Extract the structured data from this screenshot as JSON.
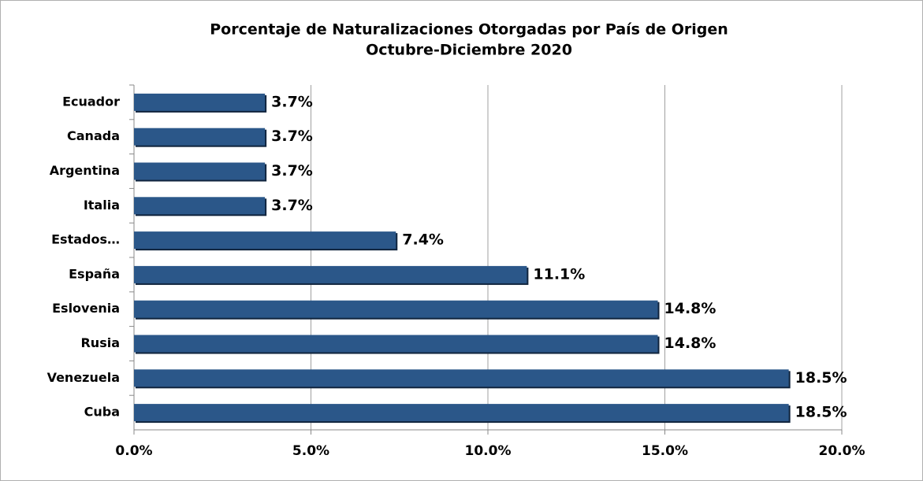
{
  "chart_data": {
    "type": "bar",
    "orientation": "horizontal",
    "title": "Porcentaje de Naturalizaciones Otorgadas por País de Origen",
    "subtitle": "Octubre-Diciembre 2020",
    "categories": [
      "Ecuador",
      "Canada",
      "Argentina",
      "Italia",
      "Estados…",
      "España",
      "Eslovenia",
      "Rusia",
      "Venezuela",
      "Cuba"
    ],
    "values": [
      3.7,
      3.7,
      3.7,
      3.7,
      7.4,
      11.1,
      14.8,
      14.8,
      18.5,
      18.5
    ],
    "value_labels": [
      "3.7%",
      "3.7%",
      "3.7%",
      "3.7%",
      "7.4%",
      "11.1%",
      "14.8%",
      "14.8%",
      "18.5%",
      "18.5%"
    ],
    "color": "#2b5789",
    "xlim": [
      0,
      20
    ],
    "xticks": [
      {
        "value": 0,
        "label": "0.0%"
      },
      {
        "value": 5,
        "label": "5.0%"
      },
      {
        "value": 10,
        "label": "10.0%"
      },
      {
        "value": 15,
        "label": "15.0%"
      },
      {
        "value": 20,
        "label": "20.0%"
      }
    ],
    "grid": true
  }
}
